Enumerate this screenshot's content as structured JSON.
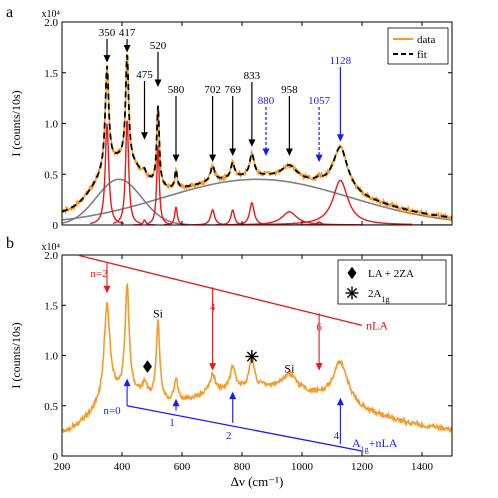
{
  "chart_data": [
    {
      "panel": "a",
      "type": "line",
      "multiplier_label": "x10⁴",
      "xlabel": "",
      "ylabel": "I (counts/10s)",
      "xlim": [
        200,
        1500
      ],
      "ylim": [
        0,
        2.0
      ],
      "yticks": [
        "0",
        "0.5",
        "1.0",
        "1.5",
        "2.0"
      ],
      "legend": {
        "placement": "top-right",
        "entries": [
          {
            "name": "data",
            "color": "#f39c2d",
            "style": "solid"
          },
          {
            "name": "fit",
            "color": "#000000",
            "style": "dashed"
          }
        ]
      },
      "colors": {
        "data": "#f39c2d",
        "fit": "#000000",
        "peak": "#e41a1c",
        "broad": "#808080",
        "blue_annotation": "#1a1aff",
        "black_annotation": "#000000"
      },
      "peak_labels": [
        {
          "label": "350",
          "x": 350,
          "y": 1.58,
          "color": "black",
          "arrow": "solid"
        },
        {
          "label": "417",
          "x": 417,
          "y": 1.68,
          "color": "black",
          "arrow": "solid"
        },
        {
          "label": "475",
          "x": 475,
          "y": 0.82,
          "color": "black",
          "arrow": "solid"
        },
        {
          "label": "520",
          "x": 520,
          "y": 1.34,
          "color": "black",
          "arrow": "solid"
        },
        {
          "label": "580",
          "x": 580,
          "y": 0.6,
          "color": "black",
          "arrow": "solid"
        },
        {
          "label": "702",
          "x": 702,
          "y": 0.6,
          "color": "black",
          "arrow": "solid"
        },
        {
          "label": "769",
          "x": 769,
          "y": 0.66,
          "color": "black",
          "arrow": "solid"
        },
        {
          "label": "833",
          "x": 833,
          "y": 0.75,
          "color": "black",
          "arrow": "solid"
        },
        {
          "label": "880",
          "x": 880,
          "y": 0.66,
          "color": "blue",
          "arrow": "dashed"
        },
        {
          "label": "958",
          "x": 958,
          "y": 0.66,
          "color": "black",
          "arrow": "solid"
        },
        {
          "label": "1057",
          "x": 1057,
          "y": 0.6,
          "color": "blue",
          "arrow": "dashed"
        },
        {
          "label": "1128",
          "x": 1128,
          "y": 0.8,
          "color": "blue",
          "arrow": "solid"
        }
      ],
      "fit_components": {
        "narrow_peaks": [
          {
            "center": 350,
            "height": 1.0,
            "width": 7
          },
          {
            "center": 417,
            "height": 1.05,
            "width": 6
          },
          {
            "center": 475,
            "height": 0.05,
            "width": 5
          },
          {
            "center": 520,
            "height": 0.78,
            "width": 5
          },
          {
            "center": 580,
            "height": 0.18,
            "width": 5
          },
          {
            "center": 702,
            "height": 0.15,
            "width": 8
          },
          {
            "center": 769,
            "height": 0.15,
            "width": 7
          },
          {
            "center": 833,
            "height": 0.22,
            "width": 9
          },
          {
            "center": 958,
            "height": 0.13,
            "width": 30
          },
          {
            "center": 1057,
            "height": 0.03,
            "width": 10
          },
          {
            "center": 1128,
            "height": 0.44,
            "width": 30
          }
        ],
        "broad_peaks": [
          {
            "center": 390,
            "height": 0.45,
            "width": 75
          },
          {
            "center": 850,
            "height": 0.45,
            "width": 310
          }
        ]
      }
    },
    {
      "panel": "b",
      "type": "line",
      "multiplier_label": "x10⁴",
      "xlabel": "Δν (cm⁻¹)",
      "ylabel": "I (counts/10s)",
      "xlim": [
        200,
        1500
      ],
      "ylim": [
        0,
        2.0
      ],
      "xticks": [
        "200",
        "400",
        "600",
        "800",
        "1000",
        "1200",
        "1400"
      ],
      "yticks": [
        "0",
        "0.5",
        "1.0",
        "1.5",
        "2.0"
      ],
      "legend": {
        "placement": "top-right",
        "entries": [
          {
            "name": "LA + 2ZA",
            "symbol": "diamond"
          },
          {
            "name": "2A",
            "sub": "1g",
            "symbol": "asterisk"
          }
        ]
      },
      "spectrum_peaks": [
        {
          "center": 350,
          "height": 0.95,
          "width": 12
        },
        {
          "center": 417,
          "height": 1.05,
          "width": 8
        },
        {
          "center": 475,
          "height": 0.12,
          "width": 10
        },
        {
          "center": 520,
          "height": 0.78,
          "width": 7
        },
        {
          "center": 580,
          "height": 0.2,
          "width": 8
        },
        {
          "center": 702,
          "height": 0.18,
          "width": 12
        },
        {
          "center": 769,
          "height": 0.22,
          "width": 10
        },
        {
          "center": 833,
          "height": 0.3,
          "width": 10
        },
        {
          "center": 958,
          "height": 0.16,
          "width": 30
        },
        {
          "center": 1128,
          "height": 0.42,
          "width": 30
        }
      ],
      "nLA_line": {
        "name": "nLA",
        "color": "#e41a1c",
        "start": [
          250,
          2.0
        ],
        "end": [
          1200,
          1.3
        ]
      },
      "nLA_labels": [
        {
          "label": "n=2",
          "x": 350,
          "y_text": 1.78
        },
        {
          "label": "4",
          "x": 702,
          "y_text": 1.45
        },
        {
          "label": "6",
          "x": 1057,
          "y_text": 1.25
        }
      ],
      "nLA_arrows": [
        {
          "x": 350,
          "y_from": 1.93,
          "y_to": 1.62
        },
        {
          "x": 702,
          "y_from": 1.68,
          "y_to": 0.85
        },
        {
          "x": 1057,
          "y_from": 1.42,
          "y_to": 0.85
        }
      ],
      "A1g_line": {
        "name": "A",
        "sub": "1g",
        "suffix": "+nLA",
        "color": "#1a1aff",
        "start": [
          417,
          0.5
        ],
        "end": [
          1200,
          0.05
        ]
      },
      "A1g_labels": [
        {
          "label": "n=0",
          "x": 380,
          "y_text": 0.42
        },
        {
          "label": "1",
          "x": 580,
          "y_text": 0.3
        },
        {
          "label": "2",
          "x": 769,
          "y_text": 0.17
        },
        {
          "label": "4",
          "x": 1128,
          "y_text": 0.17
        }
      ],
      "A1g_arrows": [
        {
          "x": 417,
          "y_from": 0.5,
          "y_to": 0.77
        },
        {
          "x": 580,
          "y_from": 0.45,
          "y_to": 0.57
        },
        {
          "x": 769,
          "y_from": 0.33,
          "y_to": 0.64
        },
        {
          "x": 1128,
          "y_from": 0.12,
          "y_to": 0.58
        }
      ],
      "si_labels": [
        {
          "label": "Si",
          "x": 520,
          "y": 1.38
        },
        {
          "label": "Si",
          "x": 958,
          "y": 0.83
        }
      ],
      "markers": [
        {
          "symbol": "diamond",
          "x": 485,
          "y": 0.89
        },
        {
          "symbol": "asterisk",
          "x": 833,
          "y": 0.99
        }
      ]
    }
  ],
  "panel_labels": [
    "a",
    "b"
  ]
}
